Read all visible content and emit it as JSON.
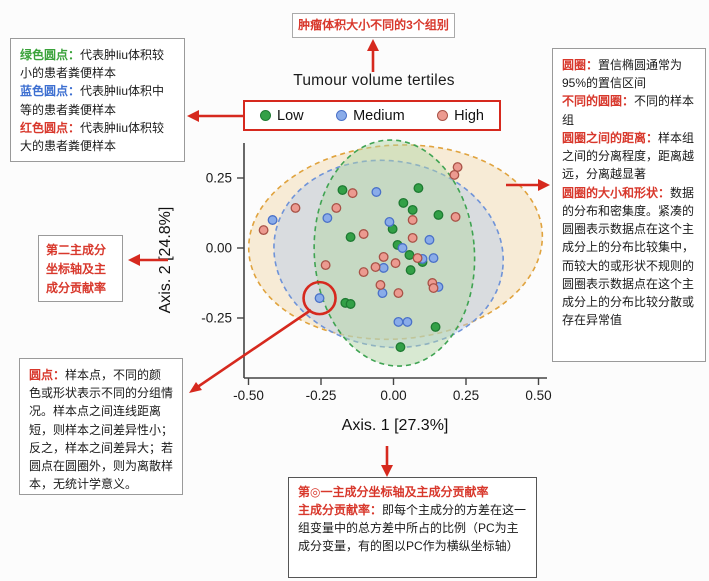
{
  "colors": {
    "annotation_red": "#d6291e",
    "text_red": "#d8382c",
    "text_green": "#3aa23a",
    "text_blue": "#3d6fd1",
    "low_green_fill": "#33a047",
    "low_green_stroke": "#1e7a32",
    "medium_blue_fill": "#8aace9",
    "medium_blue_stroke": "#4a71c8",
    "high_salmon_fill": "#ec9a90",
    "high_salmon_stroke": "#a85247"
  },
  "annotations": {
    "top_left": {
      "items": [
        [
          {
            "text": "绿色圆点：",
            "color": "green"
          },
          {
            "text": "代表肿liu体积较小的患者粪便样本",
            "color": "black"
          }
        ],
        [
          {
            "text": "蓝色圆点：",
            "color": "blue"
          },
          {
            "text": "代表肿liu体积中等的患者粪便样本",
            "color": "black"
          }
        ],
        [
          {
            "text": "红色圆点：",
            "color": "red"
          },
          {
            "text": "代表肿liu体积较大的患者粪便样本",
            "color": "black"
          }
        ]
      ]
    },
    "top_center": {
      "text": "肿瘤体积大小不同的3个组别"
    },
    "right": {
      "items": [
        [
          {
            "text": "圆圈：",
            "color": "red"
          },
          {
            "text": "置信椭圆通常为95%的置信区间",
            "color": "black"
          }
        ],
        [
          {
            "text": "不同的圆圈：",
            "color": "red"
          },
          {
            "text": "不同的样本组",
            "color": "black"
          }
        ],
        [
          {
            "text": "圆圈之间的距离：",
            "color": "red"
          },
          {
            "text": "样本组之间的分离程度，距离越远，分离越显著",
            "color": "black"
          }
        ],
        [
          {
            "text": "圆圈的大小和形状：",
            "color": "red"
          },
          {
            "text": "数据的分布和密集度。紧凑的圆圈表示数据点在这个主成分上的分布比较集中，而较大的或形状不规则的圆圈表示数据点在这个主成分上的分布比较分散或存在异常值",
            "color": "black"
          }
        ]
      ]
    },
    "mid_left": {
      "text": "第二主成分坐标轴及主成分贡献率"
    },
    "bottom_left": {
      "items": [
        [
          {
            "text": "圆点：",
            "color": "red"
          },
          {
            "text": "样本点，不同的颜色或形状表示不同的分组情况。样本点之间连线距离短，则样本之间差异性小；反之，样本之间差异大；若圆点在圆圈外，则为离散样本，无统计学意义。",
            "color": "black"
          }
        ]
      ]
    },
    "bottom_center": {
      "items": [
        [
          {
            "text": "第◎一主成分坐标轴及主成分贡献率",
            "color": "red"
          }
        ],
        [
          {
            "text": "主成分贡献率：",
            "color": "red"
          },
          {
            "text": "即每个主成分的方差在这一组变量中的总方差中所占的比例（PC为主成分变量，有的图以PC作为横纵坐标轴）",
            "color": "black"
          }
        ]
      ]
    }
  },
  "chart_data": {
    "type": "scatter",
    "title": "Tumour volume tertiles",
    "xlabel": "Axis. 1 [27.3%]",
    "ylabel": "Axis. 2 [24.8%]",
    "xlim": [
      -0.55,
      0.55
    ],
    "ylim": [
      -0.47,
      0.38
    ],
    "x_ticks": [
      "-0.50",
      "-0.25",
      "0.00",
      "0.25",
      "0.50"
    ],
    "y_ticks": [
      "0.25",
      "0.00",
      "-0.25"
    ],
    "legend": [
      "Low",
      "Medium",
      "High"
    ],
    "grid": false,
    "legend_position": "top",
    "series": [
      {
        "name": "Low",
        "fill": "#33a047",
        "stroke": "#1e7a32",
        "points": [
          [
            -0.176,
            0.207
          ],
          [
            0.086,
            0.214
          ],
          [
            0.034,
            0.161
          ],
          [
            0.066,
            0.136
          ],
          [
            0.155,
            0.118
          ],
          [
            -0.003,
            0.068
          ],
          [
            -0.148,
            0.039
          ],
          [
            0.014,
            0.011
          ],
          [
            0.055,
            -0.025
          ],
          [
            0.1,
            -0.05
          ],
          [
            0.059,
            -0.079
          ],
          [
            -0.166,
            -0.196
          ],
          [
            -0.148,
            -0.2
          ],
          [
            0.145,
            -0.282
          ],
          [
            0.024,
            -0.354
          ]
        ]
      },
      {
        "name": "Medium",
        "fill": "#8aace9",
        "stroke": "#4a71c8",
        "points": [
          [
            -0.059,
            0.2
          ],
          [
            -0.417,
            0.1
          ],
          [
            -0.228,
            0.107
          ],
          [
            -0.014,
            0.093
          ],
          [
            0.124,
            0.029
          ],
          [
            0.031,
            0.0
          ],
          [
            0.138,
            -0.036
          ],
          [
            0.1,
            -0.039
          ],
          [
            -0.034,
            -0.071
          ],
          [
            0.155,
            -0.139
          ],
          [
            -0.038,
            -0.161
          ],
          [
            -0.255,
            -0.179
          ],
          [
            0.017,
            -0.264
          ],
          [
            0.048,
            -0.264
          ]
        ]
      },
      {
        "name": "High",
        "fill": "#ec9a90",
        "stroke": "#a85247",
        "points": [
          [
            -0.141,
            0.196
          ],
          [
            0.221,
            0.289
          ],
          [
            0.21,
            0.261
          ],
          [
            -0.338,
            0.143
          ],
          [
            -0.197,
            0.143
          ],
          [
            0.066,
            0.1
          ],
          [
            0.214,
            0.111
          ],
          [
            -0.448,
            0.064
          ],
          [
            -0.103,
            0.05
          ],
          [
            0.066,
            0.036
          ],
          [
            0.083,
            -0.036
          ],
          [
            -0.034,
            -0.032
          ],
          [
            0.007,
            -0.054
          ],
          [
            -0.062,
            -0.068
          ],
          [
            -0.234,
            -0.061
          ],
          [
            -0.103,
            -0.086
          ],
          [
            0.134,
            -0.125
          ],
          [
            0.138,
            -0.143
          ],
          [
            -0.045,
            -0.132
          ],
          [
            0.017,
            -0.161
          ]
        ]
      }
    ],
    "ellipses": [
      {
        "group": "High",
        "cx": 0.007,
        "cy": 0.021,
        "rx": 0.507,
        "ry": 0.346,
        "rot": -4,
        "fill": "#f3d9ad",
        "stroke": "#e0a33e"
      },
      {
        "group": "Medium",
        "cx": -0.017,
        "cy": -0.021,
        "rx": 0.397,
        "ry": 0.332,
        "rot": 9,
        "fill": "#b8cbe8",
        "stroke": "#6f93d8"
      },
      {
        "group": "Low",
        "cx": 0.003,
        "cy": -0.018,
        "rx": 0.276,
        "ry": 0.404,
        "rot": -4,
        "fill": "#b2d6a6",
        "stroke": "#3fa352"
      }
    ],
    "highlight_circle": {
      "x": -0.255,
      "y": -0.179
    }
  }
}
